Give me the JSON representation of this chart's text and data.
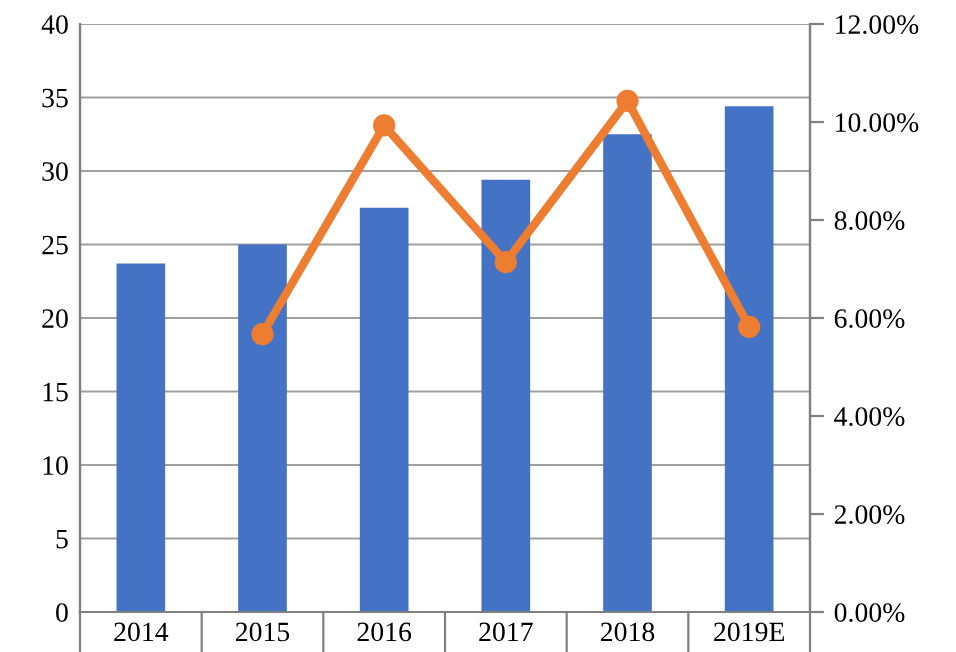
{
  "chart_data": {
    "type": "bar",
    "categories": [
      "2014",
      "2015",
      "2016",
      "2017",
      "2018",
      "2019E"
    ],
    "series": [
      {
        "color": "#4472c4",
        "values": [
          23.7,
          25.0,
          27.5,
          29.4,
          32.5,
          34.4
        ]
      },
      {
        "type": "line",
        "axis": "y2",
        "color": "#ed7d31",
        "values": [
          null,
          5.67,
          9.93,
          7.14,
          10.43,
          5.82
        ]
      }
    ],
    "ylim": [
      0,
      40
    ],
    "yticks": [
      0,
      5,
      10,
      15,
      20,
      25,
      30,
      35,
      40
    ],
    "y2lim": [
      0,
      12
    ],
    "y2ticks": [
      {
        "value": 0,
        "label": "0.00%"
      },
      {
        "value": 2,
        "label": "2.00%"
      },
      {
        "value": 4,
        "label": "4.00%"
      },
      {
        "value": 6,
        "label": "6.00%"
      },
      {
        "value": 8,
        "label": "8.00%"
      },
      {
        "value": 10,
        "label": "10.00%"
      },
      {
        "value": 12,
        "label": "12.00%"
      }
    ],
    "grid": "y",
    "marker": "circle",
    "line_style": "solid"
  }
}
